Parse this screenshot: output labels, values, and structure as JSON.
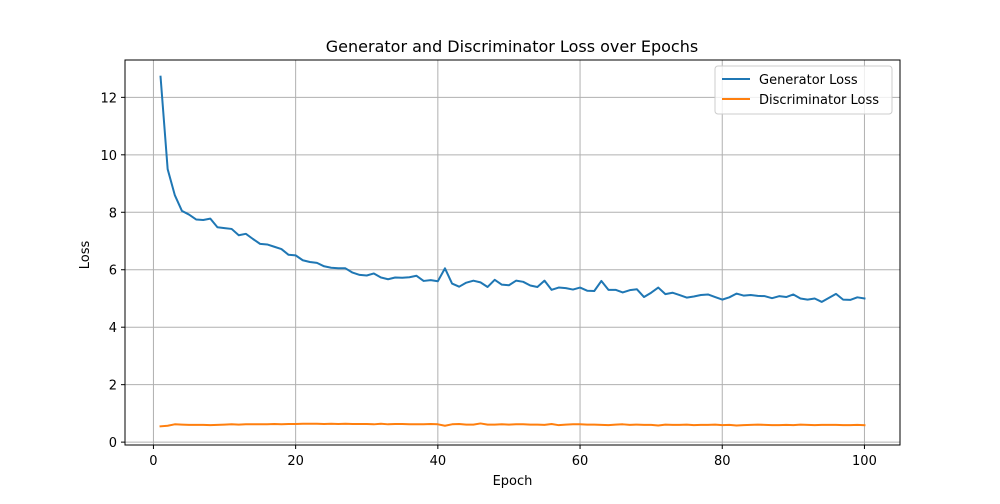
{
  "chart_data": {
    "type": "line",
    "title": "Generator and Discriminator Loss over Epochs",
    "xlabel": "Epoch",
    "ylabel": "Loss",
    "xlim": [
      -4.0,
      105.0
    ],
    "ylim": [
      -0.1,
      13.3
    ],
    "xticks": [
      0,
      20,
      40,
      60,
      80,
      100
    ],
    "yticks": [
      0,
      2,
      4,
      6,
      8,
      10,
      12
    ],
    "grid": true,
    "legend_position": "top-right",
    "x": [
      1,
      2,
      3,
      4,
      5,
      6,
      7,
      8,
      9,
      10,
      11,
      12,
      13,
      14,
      15,
      16,
      17,
      18,
      19,
      20,
      21,
      22,
      23,
      24,
      25,
      26,
      27,
      28,
      29,
      30,
      31,
      32,
      33,
      34,
      35,
      36,
      37,
      38,
      39,
      40,
      41,
      42,
      43,
      44,
      45,
      46,
      47,
      48,
      49,
      50,
      51,
      52,
      53,
      54,
      55,
      56,
      57,
      58,
      59,
      60,
      61,
      62,
      63,
      64,
      65,
      66,
      67,
      68,
      69,
      70,
      71,
      72,
      73,
      74,
      75,
      76,
      77,
      78,
      79,
      80,
      81,
      82,
      83,
      84,
      85,
      86,
      87,
      88,
      89,
      90,
      91,
      92,
      93,
      94,
      95,
      96,
      97,
      98,
      99,
      100
    ],
    "series": [
      {
        "name": "Generator Loss",
        "color": "#1f77b4",
        "values": [
          12.72,
          9.5,
          8.6,
          8.05,
          7.92,
          7.75,
          7.73,
          7.78,
          7.48,
          7.45,
          7.42,
          7.2,
          7.25,
          7.07,
          6.9,
          6.88,
          6.8,
          6.72,
          6.52,
          6.5,
          6.33,
          6.27,
          6.24,
          6.12,
          6.07,
          6.05,
          6.05,
          5.9,
          5.82,
          5.8,
          5.87,
          5.73,
          5.67,
          5.73,
          5.72,
          5.74,
          5.79,
          5.61,
          5.64,
          5.6,
          6.05,
          5.52,
          5.41,
          5.55,
          5.62,
          5.56,
          5.4,
          5.65,
          5.48,
          5.46,
          5.62,
          5.58,
          5.45,
          5.4,
          5.62,
          5.3,
          5.38,
          5.36,
          5.31,
          5.38,
          5.27,
          5.26,
          5.61,
          5.3,
          5.3,
          5.21,
          5.29,
          5.32,
          5.05,
          5.2,
          5.38,
          5.15,
          5.2,
          5.12,
          5.03,
          5.07,
          5.12,
          5.14,
          5.05,
          4.96,
          5.04,
          5.17,
          5.1,
          5.12,
          5.09,
          5.08,
          5.01,
          5.08,
          5.05,
          5.14,
          5.0,
          4.96,
          5.0,
          4.88,
          5.02,
          5.16,
          4.96,
          4.95,
          5.04,
          5.0
        ]
      },
      {
        "name": "Discriminator Loss",
        "color": "#ff7f0e",
        "values": [
          0.55,
          0.57,
          0.62,
          0.61,
          0.6,
          0.6,
          0.6,
          0.59,
          0.6,
          0.61,
          0.62,
          0.61,
          0.62,
          0.62,
          0.62,
          0.62,
          0.63,
          0.62,
          0.63,
          0.63,
          0.64,
          0.64,
          0.64,
          0.63,
          0.64,
          0.63,
          0.64,
          0.63,
          0.63,
          0.63,
          0.62,
          0.64,
          0.62,
          0.63,
          0.63,
          0.62,
          0.62,
          0.62,
          0.63,
          0.62,
          0.57,
          0.62,
          0.63,
          0.61,
          0.61,
          0.65,
          0.61,
          0.61,
          0.62,
          0.61,
          0.62,
          0.62,
          0.61,
          0.61,
          0.6,
          0.63,
          0.59,
          0.61,
          0.62,
          0.62,
          0.61,
          0.61,
          0.6,
          0.59,
          0.61,
          0.62,
          0.6,
          0.61,
          0.6,
          0.6,
          0.58,
          0.61,
          0.6,
          0.6,
          0.61,
          0.59,
          0.6,
          0.6,
          0.61,
          0.59,
          0.6,
          0.58,
          0.59,
          0.6,
          0.61,
          0.6,
          0.59,
          0.59,
          0.6,
          0.59,
          0.61,
          0.6,
          0.59,
          0.6,
          0.6,
          0.6,
          0.59,
          0.59,
          0.6,
          0.59
        ]
      }
    ]
  }
}
